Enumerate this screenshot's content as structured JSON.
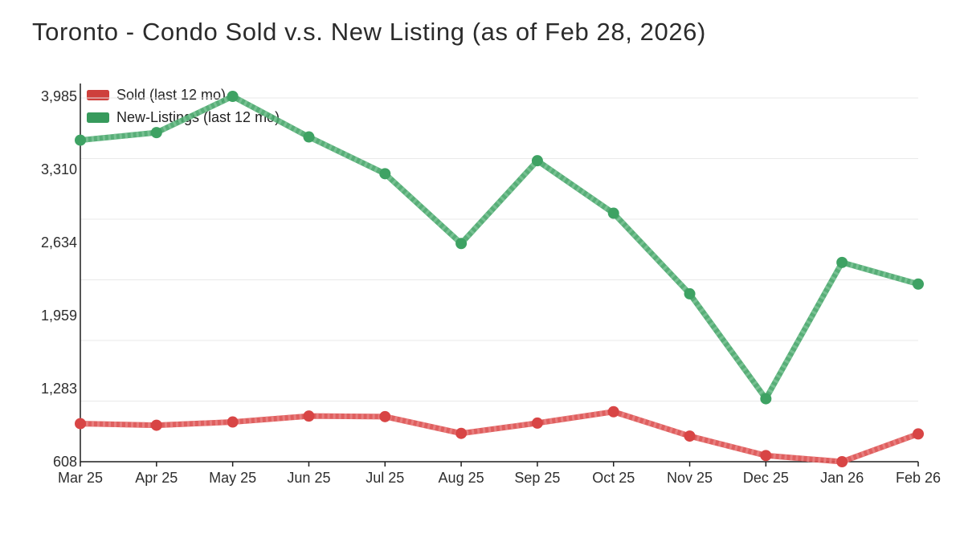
{
  "chart_data": {
    "type": "line",
    "title": "Toronto - Condo Sold v.s. New Listing (as of Feb 28, 2026)",
    "as_of": "Feb 28, 2026",
    "categories": [
      "Mar 25",
      "Apr 25",
      "May 25",
      "Jun 25",
      "Jul 25",
      "Aug 25",
      "Sep 25",
      "Oct 25",
      "Nov 25",
      "Dec 25",
      "Jan 26",
      "Feb 26"
    ],
    "series": [
      {
        "name": "Sold (last 12 mo)",
        "color": "#dc5151",
        "color_light": "#ea8484",
        "marker_color": "#d84545",
        "legend_color": "#ce403c",
        "values": [
          960,
          945,
          975,
          1030,
          1025,
          870,
          965,
          1070,
          845,
          665,
          608,
          865
        ]
      },
      {
        "name": "New-Listings (last 12 mo)",
        "color": "#4aa76c",
        "color_light": "#7cc497",
        "marker_color": "#3ea263",
        "legend_color": "#379a5c",
        "values": [
          3580,
          3650,
          3985,
          3610,
          3270,
          2625,
          3390,
          2905,
          2160,
          1190,
          2450,
          2250
        ]
      }
    ],
    "y_ticks": [
      {
        "value": 608,
        "label": "608"
      },
      {
        "value": 1283,
        "label": "1,283"
      },
      {
        "value": 1959,
        "label": "1,959"
      },
      {
        "value": 2634,
        "label": "2,634"
      },
      {
        "value": 3310,
        "label": "3,310"
      },
      {
        "value": 3985,
        "label": "3,985"
      }
    ],
    "ylim": [
      608,
      3985
    ],
    "xlabel": "",
    "ylabel": "",
    "grid": true,
    "legend_position": "top-left"
  },
  "colors": {
    "grid": "#e9e9e9",
    "axis": "#1f1f1f",
    "tick_text": "#2e2e2e",
    "title_text": "#2b2b2b"
  }
}
